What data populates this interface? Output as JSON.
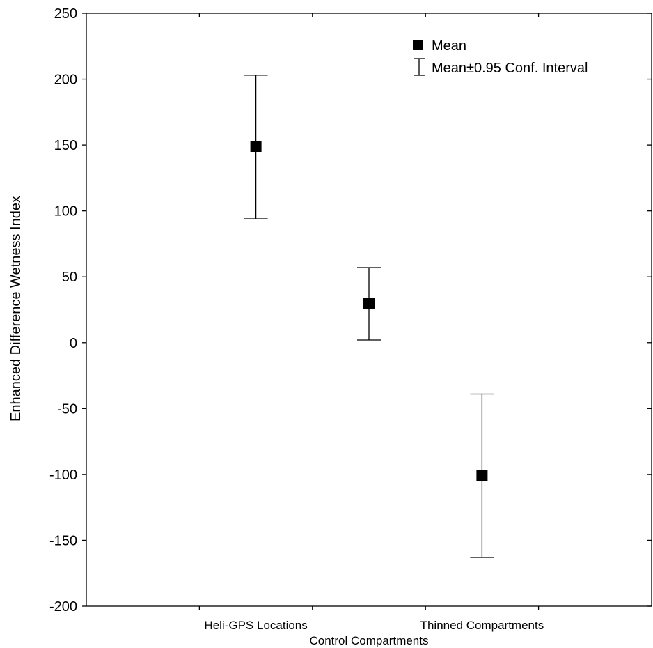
{
  "chart_data": {
    "type": "scatter",
    "categories": [
      "Heli-GPS Locations",
      "Control Compartments",
      "Thinned Compartments"
    ],
    "series": [
      {
        "name": "Mean",
        "values": [
          149,
          30,
          -101
        ],
        "ci_lower": [
          94,
          2,
          -163
        ],
        "ci_upper": [
          203,
          57,
          -39
        ]
      }
    ],
    "title": "",
    "xlabel": "",
    "ylabel": "Enhanced Difference Wetness Index",
    "ylim": [
      -200,
      250
    ],
    "yticks": [
      250,
      200,
      150,
      100,
      50,
      0,
      -50,
      -100,
      -150,
      -200
    ],
    "grid": false,
    "legend": {
      "placement": "top-right",
      "entries": [
        "Mean",
        "Mean±0.95 Conf. Interval"
      ]
    },
    "colors": {
      "marker": "#000000",
      "axis": "#000000",
      "background": "#ffffff"
    }
  }
}
